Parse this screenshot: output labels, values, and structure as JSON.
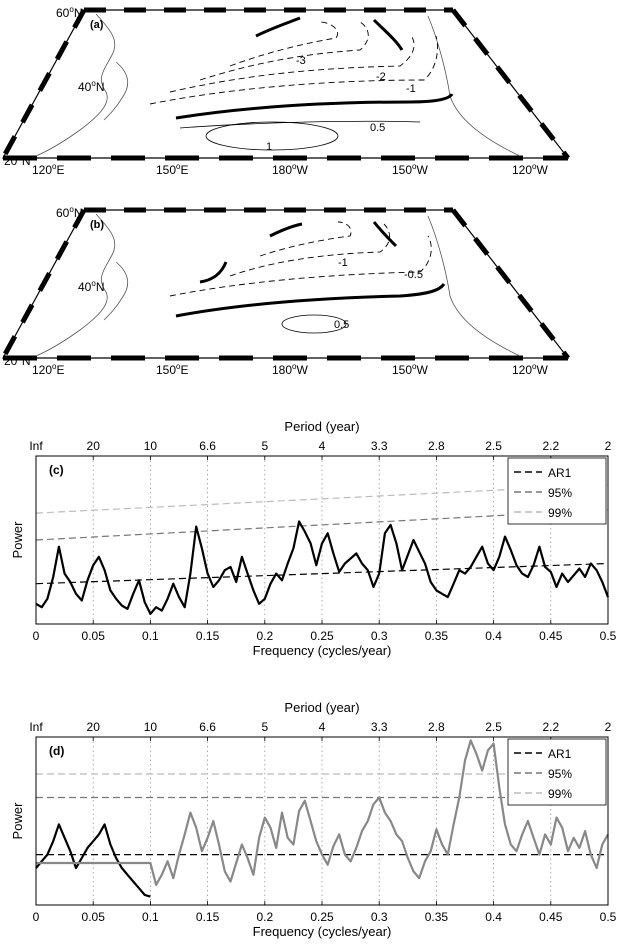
{
  "maps": [
    {
      "panel_label": "(a)",
      "lat_labels": [
        "60",
        "40",
        "20"
      ],
      "lon_labels": [
        "120",
        "150",
        "180",
        "150",
        "120"
      ],
      "lon_suffixes": [
        "E",
        "E",
        "W",
        "W",
        "W"
      ],
      "lat_suffix": "N",
      "contour_labels": [
        "-3",
        "-2",
        "-1",
        "0.5",
        "1"
      ]
    },
    {
      "panel_label": "(b)",
      "lat_labels": [
        "60",
        "40",
        "20"
      ],
      "lon_labels": [
        "120",
        "150",
        "180",
        "150",
        "120"
      ],
      "lon_suffixes": [
        "E",
        "E",
        "W",
        "W",
        "W"
      ],
      "lat_suffix": "N",
      "contour_labels": [
        "-1",
        "-0.5",
        "0.5"
      ]
    }
  ],
  "chart_data": [
    {
      "type": "line",
      "panel_label": "(c)",
      "top_axis_label": "Period (year)",
      "top_ticks": [
        "Inf",
        "20",
        "10",
        "6.6",
        "5",
        "4",
        "3.3",
        "2.8",
        "2.5",
        "2.2",
        "2"
      ],
      "xlabel": "Frequency (cycles/year)",
      "ylabel": "Power",
      "xlim": [
        0,
        0.5
      ],
      "xticks": [
        "0",
        "0.05",
        "0.1",
        "0.15",
        "0.2",
        "0.25",
        "0.3",
        "0.35",
        "0.4",
        "0.45",
        "0.5"
      ],
      "ylim": [
        0,
        10
      ],
      "grid": "vertical dotted",
      "legend_position": "top-right",
      "series": [
        {
          "name": "AR1",
          "style": "dashed",
          "color": "#000000",
          "x": [
            0,
            0.5
          ],
          "y": [
            2.4,
            3.6
          ]
        },
        {
          "name": "95%",
          "style": "dashed",
          "color": "#777777",
          "x": [
            0,
            0.5
          ],
          "y": [
            5.0,
            6.8
          ]
        },
        {
          "name": "99%",
          "style": "dashed",
          "color": "#bbbbbb",
          "x": [
            0,
            0.5
          ],
          "y": [
            6.6,
            8.3
          ]
        },
        {
          "name": "",
          "style": "solid",
          "color": "#000000",
          "x": [
            0,
            0.005,
            0.01,
            0.015,
            0.02,
            0.025,
            0.03,
            0.035,
            0.04,
            0.045,
            0.05,
            0.055,
            0.06,
            0.065,
            0.07,
            0.075,
            0.08,
            0.085,
            0.09,
            0.095,
            0.1,
            0.105,
            0.11,
            0.115,
            0.12,
            0.125,
            0.13,
            0.135,
            0.14,
            0.145,
            0.15,
            0.155,
            0.16,
            0.165,
            0.17,
            0.175,
            0.18,
            0.185,
            0.19,
            0.195,
            0.2,
            0.205,
            0.21,
            0.215,
            0.22,
            0.225,
            0.23,
            0.235,
            0.24,
            0.245,
            0.25,
            0.255,
            0.26,
            0.265,
            0.27,
            0.275,
            0.28,
            0.285,
            0.29,
            0.295,
            0.3,
            0.305,
            0.31,
            0.315,
            0.32,
            0.325,
            0.33,
            0.335,
            0.34,
            0.345,
            0.35,
            0.355,
            0.36,
            0.365,
            0.37,
            0.375,
            0.38,
            0.385,
            0.39,
            0.395,
            0.4,
            0.405,
            0.41,
            0.415,
            0.42,
            0.425,
            0.43,
            0.435,
            0.44,
            0.445,
            0.45,
            0.455,
            0.46,
            0.465,
            0.47,
            0.475,
            0.48,
            0.485,
            0.49,
            0.495,
            0.5
          ],
          "y": [
            1.2,
            1.0,
            1.5,
            2.8,
            4.6,
            3.0,
            2.5,
            1.8,
            1.4,
            2.6,
            3.5,
            4.0,
            3.2,
            2.0,
            1.5,
            1.1,
            0.9,
            1.8,
            2.6,
            1.3,
            0.6,
            1.0,
            0.8,
            1.5,
            2.4,
            1.6,
            1.0,
            3.0,
            5.8,
            4.5,
            3.0,
            2.2,
            2.6,
            3.2,
            3.4,
            2.5,
            4.0,
            3.0,
            2.0,
            1.2,
            1.5,
            2.4,
            3.0,
            2.6,
            3.6,
            4.5,
            6.1,
            5.5,
            4.8,
            3.5,
            4.8,
            5.4,
            4.2,
            3.1,
            3.6,
            3.9,
            4.2,
            3.6,
            3.2,
            2.2,
            3.0,
            5.4,
            5.9,
            4.8,
            3.2,
            4.1,
            5.0,
            4.3,
            3.6,
            2.5,
            2.0,
            1.8,
            1.6,
            2.4,
            3.2,
            3.0,
            3.4,
            4.0,
            4.6,
            3.6,
            3.2,
            4.0,
            5.2,
            4.4,
            3.5,
            3.0,
            2.8,
            3.5,
            4.6,
            3.4,
            3.1,
            2.2,
            3.0,
            2.5,
            2.9,
            3.3,
            2.8,
            3.6,
            3.2,
            2.5,
            1.6
          ]
        }
      ]
    },
    {
      "type": "line",
      "panel_label": "(d)",
      "top_axis_label": "Period (year)",
      "top_ticks": [
        "Inf",
        "20",
        "10",
        "6.6",
        "5",
        "4",
        "3.3",
        "2.8",
        "2.5",
        "2.2",
        "2"
      ],
      "xlabel": "Frequency (cycles/year)",
      "ylabel": "Power",
      "xlim": [
        0,
        0.5
      ],
      "xticks": [
        "0",
        "0.05",
        "0.1",
        "0.15",
        "0.2",
        "0.25",
        "0.3",
        "0.35",
        "0.4",
        "0.45",
        "0.5"
      ],
      "ylim": [
        0,
        10
      ],
      "grid": "vertical dotted",
      "legend_position": "top-right",
      "series": [
        {
          "name": "AR1",
          "style": "dashed",
          "color": "#000000",
          "x": [
            0,
            0.5
          ],
          "y": [
            3.0,
            3.0
          ]
        },
        {
          "name": "95%",
          "style": "dashed",
          "color": "#777777",
          "x": [
            0,
            0.5
          ],
          "y": [
            6.4,
            6.4
          ]
        },
        {
          "name": "99%",
          "style": "dashed",
          "color": "#bbbbbb",
          "x": [
            0,
            0.5
          ],
          "y": [
            7.8,
            7.8
          ]
        },
        {
          "name": "",
          "style": "solid",
          "color": "#000000",
          "x": [
            0,
            0.005,
            0.01,
            0.015,
            0.02,
            0.025,
            0.03,
            0.035,
            0.04,
            0.045,
            0.05,
            0.055,
            0.06,
            0.065,
            0.07,
            0.075,
            0.08,
            0.085,
            0.09,
            0.095,
            0.1
          ],
          "y": [
            2.2,
            2.6,
            3.0,
            3.8,
            4.8,
            4.0,
            3.2,
            2.2,
            2.8,
            3.4,
            3.8,
            4.2,
            4.8,
            3.6,
            2.8,
            2.2,
            1.8,
            1.4,
            1.0,
            0.6,
            0.5
          ]
        },
        {
          "name": "",
          "style": "solid",
          "color": "#888888",
          "x": [
            0,
            0.005,
            0.01,
            0.015,
            0.02,
            0.025,
            0.03,
            0.035,
            0.04,
            0.045,
            0.05,
            0.055,
            0.06,
            0.065,
            0.07,
            0.075,
            0.08,
            0.085,
            0.09,
            0.095,
            0.1,
            0.105,
            0.11,
            0.115,
            0.12,
            0.125,
            0.13,
            0.135,
            0.14,
            0.145,
            0.15,
            0.155,
            0.16,
            0.165,
            0.17,
            0.175,
            0.18,
            0.185,
            0.19,
            0.195,
            0.2,
            0.205,
            0.21,
            0.215,
            0.22,
            0.225,
            0.23,
            0.235,
            0.24,
            0.245,
            0.25,
            0.255,
            0.26,
            0.265,
            0.27,
            0.275,
            0.28,
            0.285,
            0.29,
            0.295,
            0.3,
            0.305,
            0.31,
            0.315,
            0.32,
            0.325,
            0.33,
            0.335,
            0.34,
            0.345,
            0.35,
            0.355,
            0.36,
            0.365,
            0.37,
            0.375,
            0.38,
            0.385,
            0.39,
            0.395,
            0.4,
            0.405,
            0.41,
            0.415,
            0.42,
            0.425,
            0.43,
            0.435,
            0.44,
            0.445,
            0.45,
            0.455,
            0.46,
            0.465,
            0.47,
            0.475,
            0.48,
            0.485,
            0.49,
            0.495,
            0.5
          ],
          "y": [
            2.5,
            2.5,
            2.5,
            2.5,
            2.5,
            2.5,
            2.5,
            2.5,
            2.5,
            2.5,
            2.5,
            2.5,
            2.5,
            2.5,
            2.5,
            2.5,
            2.5,
            2.5,
            2.5,
            2.5,
            2.5,
            1.2,
            1.8,
            2.6,
            1.6,
            3.0,
            4.2,
            5.5,
            4.6,
            3.2,
            4.0,
            5.0,
            3.6,
            2.0,
            1.4,
            2.5,
            3.6,
            2.8,
            1.8,
            4.0,
            5.2,
            4.6,
            3.4,
            5.5,
            4.0,
            3.6,
            5.6,
            6.2,
            5.0,
            3.8,
            3.0,
            2.4,
            3.5,
            4.2,
            3.0,
            2.6,
            3.4,
            4.4,
            5.0,
            6.0,
            6.4,
            5.5,
            5.0,
            4.2,
            3.8,
            2.8,
            2.0,
            1.6,
            2.6,
            3.2,
            4.5,
            3.6,
            3.0,
            4.8,
            6.4,
            8.6,
            9.8,
            9.0,
            8.0,
            9.2,
            9.6,
            7.0,
            4.8,
            3.6,
            3.2,
            4.2,
            5.0,
            4.0,
            3.0,
            4.2,
            3.6,
            5.2,
            4.6,
            3.2,
            4.0,
            3.4,
            4.4,
            3.0,
            2.2,
            3.6,
            4.2
          ]
        }
      ]
    }
  ]
}
